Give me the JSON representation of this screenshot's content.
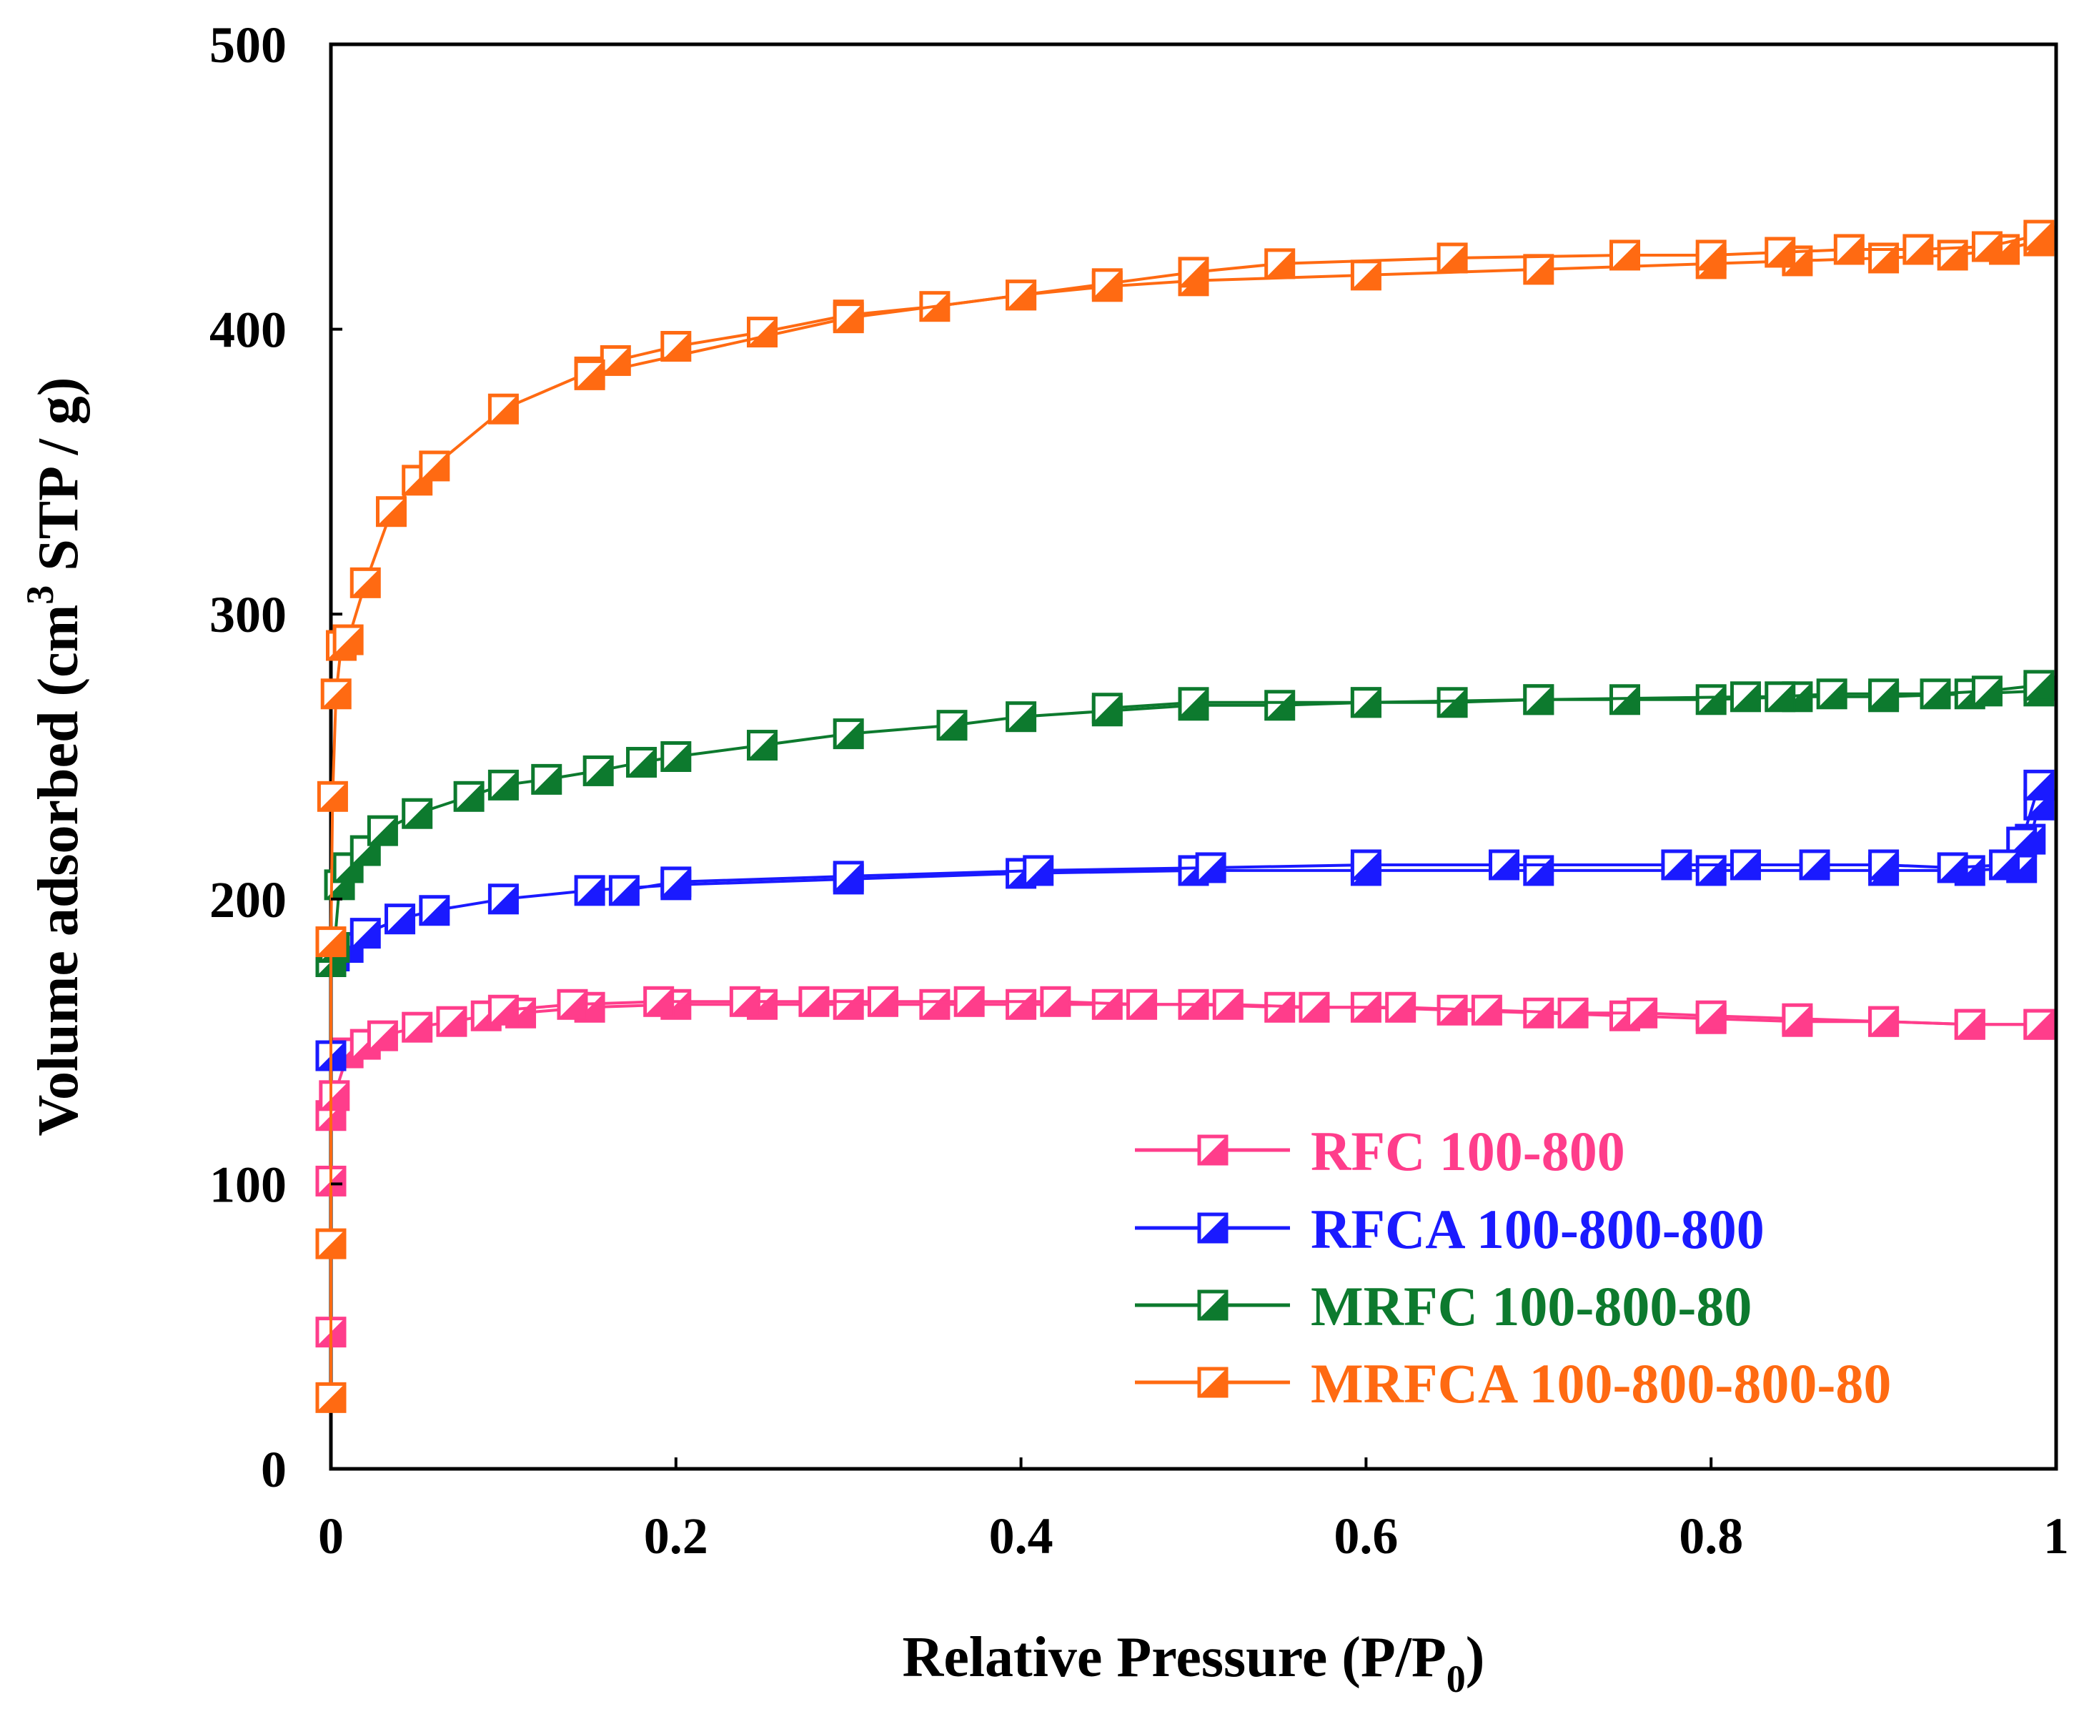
{
  "chart_data": {
    "type": "line",
    "title": "",
    "xlabel": "Relative Pressure (P/P",
    "xlabel_sub": "0",
    "xlabel_tail": ")",
    "ylabel_pre": "Volume adsorbed (cm",
    "ylabel_sup": "3",
    "ylabel_post": " STP / g)",
    "xlim": [
      0,
      1
    ],
    "ylim": [
      0,
      500
    ],
    "xticks": [
      0,
      0.2,
      0.4,
      0.6,
      0.8,
      1
    ],
    "xtick_labels": [
      "0",
      "0.2",
      "0.4",
      "0.6",
      "0.8",
      "1"
    ],
    "yticks": [
      0,
      100,
      200,
      300,
      400,
      500
    ],
    "ytick_labels": [
      "0",
      "100",
      "200",
      "300",
      "400",
      "500"
    ],
    "grid": false,
    "legend_position": "bottom-right",
    "series": [
      {
        "name": "RFC 100-800",
        "color": "#ff3d8b",
        "adsorption": [
          [
            0.0,
            48
          ],
          [
            0.0,
            101
          ],
          [
            0.0,
            124
          ],
          [
            0.002,
            131
          ],
          [
            0.01,
            146
          ],
          [
            0.02,
            149
          ],
          [
            0.03,
            152
          ],
          [
            0.05,
            155
          ],
          [
            0.07,
            157
          ],
          [
            0.09,
            159
          ],
          [
            0.11,
            160
          ],
          [
            0.15,
            162
          ],
          [
            0.2,
            163
          ],
          [
            0.25,
            163
          ],
          [
            0.3,
            163
          ],
          [
            0.35,
            163
          ],
          [
            0.4,
            163
          ],
          [
            0.45,
            163
          ],
          [
            0.5,
            163
          ],
          [
            0.55,
            162
          ],
          [
            0.6,
            162
          ],
          [
            0.65,
            161
          ],
          [
            0.7,
            160
          ],
          [
            0.75,
            159
          ],
          [
            0.8,
            158
          ],
          [
            0.85,
            157
          ],
          [
            0.9,
            157
          ],
          [
            0.95,
            156
          ],
          [
            0.99,
            156
          ]
        ],
        "desorption": [
          [
            0.99,
            156
          ],
          [
            0.95,
            156
          ],
          [
            0.9,
            157
          ],
          [
            0.85,
            158
          ],
          [
            0.8,
            159
          ],
          [
            0.76,
            160
          ],
          [
            0.72,
            160
          ],
          [
            0.67,
            161
          ],
          [
            0.62,
            162
          ],
          [
            0.57,
            162
          ],
          [
            0.52,
            163
          ],
          [
            0.47,
            163
          ],
          [
            0.42,
            164
          ],
          [
            0.37,
            164
          ],
          [
            0.32,
            164
          ],
          [
            0.28,
            164
          ],
          [
            0.24,
            164
          ],
          [
            0.19,
            164
          ],
          [
            0.14,
            163
          ],
          [
            0.1,
            161
          ]
        ]
      },
      {
        "name": "RFCA 100-800-800",
        "color": "#1a1aff",
        "adsorption": [
          [
            0.0,
            145
          ],
          [
            0.0,
            178
          ],
          [
            0.002,
            180
          ],
          [
            0.01,
            183
          ],
          [
            0.02,
            188
          ],
          [
            0.04,
            193
          ],
          [
            0.06,
            196
          ],
          [
            0.1,
            200
          ],
          [
            0.15,
            203
          ],
          [
            0.2,
            205
          ],
          [
            0.3,
            207
          ],
          [
            0.4,
            209
          ],
          [
            0.5,
            210
          ],
          [
            0.6,
            210
          ],
          [
            0.7,
            210
          ],
          [
            0.8,
            210
          ],
          [
            0.9,
            210
          ],
          [
            0.95,
            210
          ],
          [
            0.98,
            211
          ],
          [
            0.985,
            221
          ],
          [
            0.99,
            233
          ]
        ],
        "desorption": [
          [
            0.99,
            240
          ],
          [
            0.98,
            220
          ],
          [
            0.97,
            212
          ],
          [
            0.94,
            211
          ],
          [
            0.9,
            212
          ],
          [
            0.86,
            212
          ],
          [
            0.82,
            212
          ],
          [
            0.78,
            212
          ],
          [
            0.68,
            212
          ],
          [
            0.6,
            212
          ],
          [
            0.51,
            211
          ],
          [
            0.41,
            210
          ],
          [
            0.3,
            208
          ],
          [
            0.2,
            206
          ],
          [
            0.17,
            203
          ]
        ]
      },
      {
        "name": "MRFC 100-800-80",
        "color": "#0d7a2e",
        "adsorption": [
          [
            0.0,
            178
          ],
          [
            0.002,
            183
          ],
          [
            0.005,
            205
          ],
          [
            0.01,
            211
          ],
          [
            0.02,
            217
          ],
          [
            0.03,
            224
          ],
          [
            0.05,
            230
          ],
          [
            0.08,
            236
          ],
          [
            0.1,
            240
          ],
          [
            0.125,
            242
          ],
          [
            0.155,
            245
          ],
          [
            0.18,
            248
          ],
          [
            0.2,
            250
          ],
          [
            0.25,
            254
          ],
          [
            0.3,
            258
          ],
          [
            0.36,
            261
          ],
          [
            0.4,
            264
          ],
          [
            0.45,
            266
          ],
          [
            0.5,
            268
          ],
          [
            0.55,
            268
          ],
          [
            0.6,
            269
          ],
          [
            0.65,
            269
          ],
          [
            0.7,
            270
          ],
          [
            0.75,
            270
          ],
          [
            0.8,
            270
          ],
          [
            0.85,
            271
          ],
          [
            0.9,
            271
          ],
          [
            0.95,
            272
          ],
          [
            0.99,
            273
          ]
        ],
        "desorption": [
          [
            0.99,
            275
          ],
          [
            0.96,
            273
          ],
          [
            0.93,
            272
          ],
          [
            0.9,
            272
          ],
          [
            0.87,
            272
          ],
          [
            0.84,
            271
          ],
          [
            0.82,
            271
          ],
          [
            0.7,
            270
          ],
          [
            0.6,
            269
          ],
          [
            0.5,
            269
          ],
          [
            0.45,
            267
          ]
        ]
      },
      {
        "name": "MRFCA 100-800-800-80",
        "color": "#ff6a12",
        "adsorption": [
          [
            0.0,
            25
          ],
          [
            0.0,
            79
          ],
          [
            0.0,
            185
          ],
          [
            0.001,
            236
          ],
          [
            0.003,
            272
          ],
          [
            0.006,
            289
          ],
          [
            0.01,
            291
          ],
          [
            0.02,
            311
          ],
          [
            0.035,
            336
          ],
          [
            0.05,
            347
          ],
          [
            0.06,
            352
          ],
          [
            0.1,
            372
          ],
          [
            0.15,
            385
          ],
          [
            0.165,
            389
          ],
          [
            0.2,
            394
          ],
          [
            0.25,
            399
          ],
          [
            0.3,
            405
          ],
          [
            0.35,
            408
          ],
          [
            0.4,
            412
          ],
          [
            0.45,
            415
          ],
          [
            0.5,
            417
          ],
          [
            0.6,
            419
          ],
          [
            0.7,
            421
          ],
          [
            0.8,
            423
          ],
          [
            0.85,
            424
          ],
          [
            0.9,
            425
          ],
          [
            0.94,
            426
          ],
          [
            0.97,
            428
          ],
          [
            0.99,
            431
          ]
        ],
        "desorption": [
          [
            0.99,
            433
          ],
          [
            0.96,
            429
          ],
          [
            0.92,
            428
          ],
          [
            0.88,
            428
          ],
          [
            0.84,
            427
          ],
          [
            0.8,
            426
          ],
          [
            0.75,
            426
          ],
          [
            0.65,
            425
          ],
          [
            0.55,
            423
          ],
          [
            0.5,
            420
          ],
          [
            0.45,
            416
          ],
          [
            0.4,
            412
          ],
          [
            0.3,
            404
          ],
          [
            0.15,
            384
          ]
        ]
      }
    ]
  }
}
